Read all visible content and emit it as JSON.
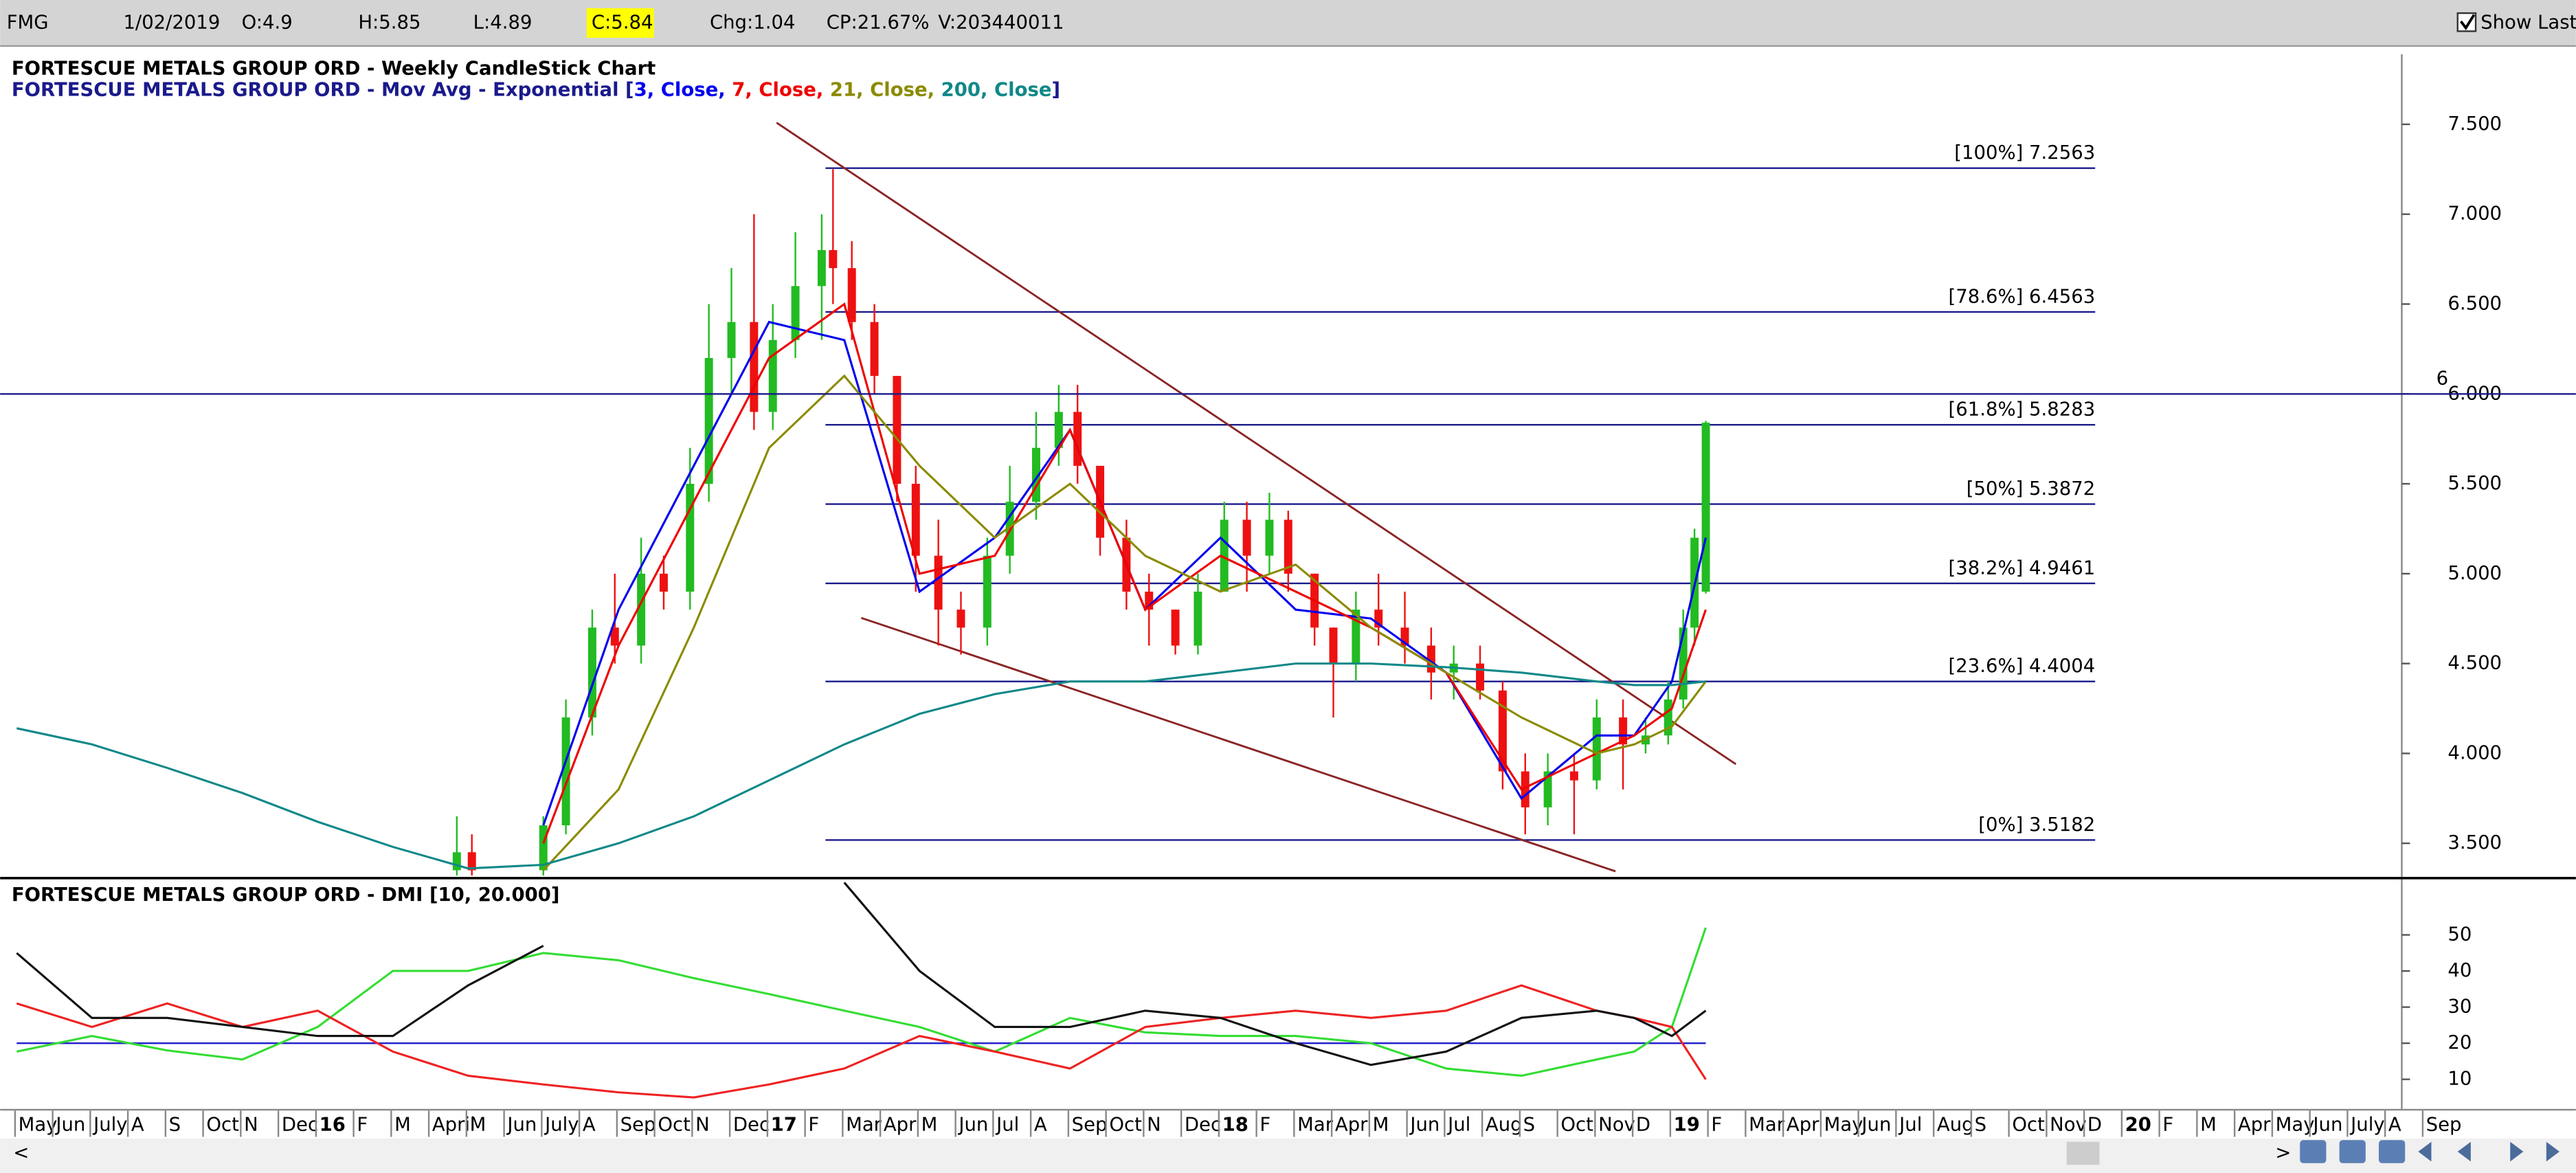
{
  "header": {
    "symbol": "FMG",
    "date": "1/02/2019",
    "open": "O:4.9",
    "high": "H:5.85",
    "low": "L:4.89",
    "close": "C:5.84",
    "change": "Chg:1.04",
    "change_pct": "CP:21.67%",
    "volume": "V:203440011",
    "show_last": "Show Last"
  },
  "time_axis": {
    "labels": [
      "May",
      "Jun",
      "July",
      "A",
      "S",
      "Oct",
      "N",
      "Dec",
      "16",
      "F",
      "M",
      "April",
      "M",
      "Jun",
      "July",
      "A",
      "Sep",
      "Oct",
      "N",
      "Dec",
      "17",
      "F",
      "Mar",
      "Apr",
      "M",
      "Jun",
      "Jul",
      "A",
      "Sep",
      "Oct",
      "N",
      "Dec",
      "18",
      "F",
      "Mar",
      "Apr",
      "M",
      "Jun",
      "Jul",
      "Aug",
      "S",
      "Oct",
      "Nov",
      "D",
      "19",
      "F",
      "Mar",
      "Apr",
      "May",
      "Jun",
      "Jul",
      "Aug",
      "S",
      "Oct",
      "Nov",
      "D",
      "20",
      "F",
      "M",
      "Apr",
      "May",
      "Jun",
      "July",
      "A",
      "Sep"
    ]
  },
  "chart_data": [
    {
      "type": "candlestick",
      "title": "FORTESCUE METALS GROUP ORD - Weekly CandleStick Chart",
      "legend_prefix": "FORTESCUE METALS GROUP ORD - Mov Avg - Exponential [",
      "legend_suffix": "]",
      "xlim": [
        -0.44,
        63.4
      ],
      "ylim": [
        3.32,
        7.89
      ],
      "yticks": [
        {
          "value": 3.5,
          "label": "3.500"
        },
        {
          "value": 4,
          "label": "4.000"
        },
        {
          "value": 4.5,
          "label": "4.500"
        },
        {
          "value": 5,
          "label": "5.000"
        },
        {
          "value": 5.5,
          "label": "5.500"
        },
        {
          "value": 6,
          "label": "6.000"
        },
        {
          "value": 6.5,
          "label": "6.500"
        },
        {
          "value": 7,
          "label": "7.000"
        },
        {
          "value": 7.5,
          "label": "7.500"
        }
      ],
      "up_color": "#22bb22",
      "down_color": "#ee1111",
      "candles": [
        {
          "x": 11.7,
          "open": 3.35,
          "high": 3.65,
          "low": 3.32,
          "close": 3.45
        },
        {
          "x": 12.1,
          "open": 3.45,
          "high": 3.55,
          "low": 3.32,
          "close": 3.35
        },
        {
          "x": 14.0,
          "open": 3.35,
          "high": 3.65,
          "low": 3.32,
          "close": 3.6
        },
        {
          "x": 14.6,
          "open": 3.6,
          "high": 4.3,
          "low": 3.55,
          "close": 4.2
        },
        {
          "x": 15.3,
          "open": 4.2,
          "high": 4.8,
          "low": 4.1,
          "close": 4.7
        },
        {
          "x": 15.9,
          "open": 4.7,
          "high": 5.0,
          "low": 4.5,
          "close": 4.6
        },
        {
          "x": 16.6,
          "open": 4.6,
          "high": 5.2,
          "low": 4.5,
          "close": 5.0
        },
        {
          "x": 17.2,
          "open": 5.0,
          "high": 5.1,
          "low": 4.8,
          "close": 4.9
        },
        {
          "x": 17.9,
          "open": 4.9,
          "high": 5.7,
          "low": 4.8,
          "close": 5.5
        },
        {
          "x": 18.4,
          "open": 5.5,
          "high": 6.5,
          "low": 5.4,
          "close": 6.2
        },
        {
          "x": 19.0,
          "open": 6.2,
          "high": 6.7,
          "low": 6.0,
          "close": 6.4
        },
        {
          "x": 19.6,
          "open": 6.4,
          "high": 7.0,
          "low": 5.8,
          "close": 5.9
        },
        {
          "x": 20.1,
          "open": 5.9,
          "high": 6.5,
          "low": 5.8,
          "close": 6.3
        },
        {
          "x": 20.7,
          "open": 6.3,
          "high": 6.9,
          "low": 6.2,
          "close": 6.6
        },
        {
          "x": 21.4,
          "open": 6.6,
          "high": 7.0,
          "low": 6.3,
          "close": 6.8
        },
        {
          "x": 21.7,
          "open": 6.8,
          "high": 7.25,
          "low": 6.5,
          "close": 6.7
        },
        {
          "x": 22.2,
          "open": 6.7,
          "high": 6.85,
          "low": 6.3,
          "close": 6.4
        },
        {
          "x": 22.8,
          "open": 6.4,
          "high": 6.5,
          "low": 6.0,
          "close": 6.1
        },
        {
          "x": 23.4,
          "open": 6.1,
          "high": 6.1,
          "low": 5.4,
          "close": 5.5
        },
        {
          "x": 23.9,
          "open": 5.5,
          "high": 5.6,
          "low": 4.9,
          "close": 5.1
        },
        {
          "x": 24.5,
          "open": 5.1,
          "high": 5.3,
          "low": 4.6,
          "close": 4.8
        },
        {
          "x": 25.1,
          "open": 4.8,
          "high": 4.9,
          "low": 4.55,
          "close": 4.7
        },
        {
          "x": 25.8,
          "open": 4.7,
          "high": 5.2,
          "low": 4.6,
          "close": 5.1
        },
        {
          "x": 26.4,
          "open": 5.1,
          "high": 5.6,
          "low": 5.0,
          "close": 5.4
        },
        {
          "x": 27.1,
          "open": 5.4,
          "high": 5.9,
          "low": 5.3,
          "close": 5.7
        },
        {
          "x": 27.7,
          "open": 5.7,
          "high": 6.05,
          "low": 5.6,
          "close": 5.9
        },
        {
          "x": 28.2,
          "open": 5.9,
          "high": 6.05,
          "low": 5.5,
          "close": 5.6
        },
        {
          "x": 28.8,
          "open": 5.6,
          "high": 5.6,
          "low": 5.1,
          "close": 5.2
        },
        {
          "x": 29.5,
          "open": 5.2,
          "high": 5.3,
          "low": 4.8,
          "close": 4.9
        },
        {
          "x": 30.1,
          "open": 4.9,
          "high": 5.0,
          "low": 4.6,
          "close": 4.8
        },
        {
          "x": 30.8,
          "open": 4.8,
          "high": 4.8,
          "low": 4.55,
          "close": 4.6
        },
        {
          "x": 31.4,
          "open": 4.6,
          "high": 5.0,
          "low": 4.55,
          "close": 4.9
        },
        {
          "x": 32.1,
          "open": 4.9,
          "high": 5.4,
          "low": 4.9,
          "close": 5.3
        },
        {
          "x": 32.7,
          "open": 5.3,
          "high": 5.4,
          "low": 4.9,
          "close": 5.1
        },
        {
          "x": 33.3,
          "open": 5.1,
          "high": 5.45,
          "low": 5.0,
          "close": 5.3
        },
        {
          "x": 33.8,
          "open": 5.3,
          "high": 5.35,
          "low": 4.9,
          "close": 5.0
        },
        {
          "x": 34.5,
          "open": 5.0,
          "high": 5.0,
          "low": 4.6,
          "close": 4.7
        },
        {
          "x": 35.0,
          "open": 4.7,
          "high": 4.7,
          "low": 4.2,
          "close": 4.5
        },
        {
          "x": 35.6,
          "open": 4.5,
          "high": 4.9,
          "low": 4.4,
          "close": 4.8
        },
        {
          "x": 36.2,
          "open": 4.8,
          "high": 5.0,
          "low": 4.6,
          "close": 4.7
        },
        {
          "x": 36.9,
          "open": 4.7,
          "high": 4.9,
          "low": 4.5,
          "close": 4.6
        },
        {
          "x": 37.6,
          "open": 4.6,
          "high": 4.7,
          "low": 4.3,
          "close": 4.45
        },
        {
          "x": 38.2,
          "open": 4.45,
          "high": 4.6,
          "low": 4.3,
          "close": 4.5
        },
        {
          "x": 38.9,
          "open": 4.5,
          "high": 4.6,
          "low": 4.3,
          "close": 4.35
        },
        {
          "x": 39.5,
          "open": 4.35,
          "high": 4.4,
          "low": 3.8,
          "close": 3.9
        },
        {
          "x": 40.1,
          "open": 3.9,
          "high": 4.0,
          "low": 3.55,
          "close": 3.7
        },
        {
          "x": 40.7,
          "open": 3.7,
          "high": 4.0,
          "low": 3.6,
          "close": 3.9
        },
        {
          "x": 41.4,
          "open": 3.9,
          "high": 4.0,
          "low": 3.55,
          "close": 3.85
        },
        {
          "x": 42.0,
          "open": 3.85,
          "high": 4.3,
          "low": 3.8,
          "close": 4.2
        },
        {
          "x": 42.7,
          "open": 4.2,
          "high": 4.3,
          "low": 3.8,
          "close": 4.05
        },
        {
          "x": 43.3,
          "open": 4.05,
          "high": 4.2,
          "low": 4.0,
          "close": 4.1
        },
        {
          "x": 43.9,
          "open": 4.1,
          "high": 4.4,
          "low": 4.05,
          "close": 4.3
        },
        {
          "x": 44.3,
          "open": 4.3,
          "high": 4.8,
          "low": 4.25,
          "close": 4.7
        },
        {
          "x": 44.6,
          "open": 4.7,
          "high": 5.25,
          "low": 4.6,
          "close": 5.2
        },
        {
          "x": 44.9,
          "open": 4.9,
          "high": 5.85,
          "low": 4.89,
          "close": 5.84
        }
      ],
      "x": [
        0,
        2,
        4,
        6,
        8,
        10,
        12,
        14,
        16,
        18,
        20,
        22,
        24,
        26,
        28,
        30,
        32,
        34,
        36,
        38,
        40,
        42,
        43,
        44,
        44.9
      ],
      "series": [
        {
          "name": "3, Close,",
          "color": "#0000ee",
          "values": [
            null,
            null,
            null,
            null,
            null,
            null,
            null,
            3.6,
            4.8,
            5.6,
            6.4,
            6.3,
            4.9,
            5.2,
            5.8,
            4.8,
            5.2,
            4.8,
            4.75,
            4.45,
            3.75,
            4.1,
            4.1,
            4.4,
            5.2
          ]
        },
        {
          "name": "7, Close,",
          "color": "#ee0000",
          "values": [
            null,
            null,
            null,
            null,
            null,
            null,
            null,
            3.5,
            4.6,
            5.4,
            6.2,
            6.5,
            5.0,
            5.1,
            5.8,
            4.8,
            5.1,
            4.9,
            4.7,
            4.45,
            3.8,
            4.0,
            4.1,
            4.25,
            4.8
          ]
        },
        {
          "name": "21, Close,",
          "color": "#8b8b00",
          "values": [
            null,
            null,
            null,
            null,
            null,
            null,
            null,
            3.35,
            3.8,
            4.7,
            5.7,
            6.1,
            5.6,
            5.2,
            5.5,
            5.1,
            4.9,
            5.05,
            4.7,
            4.45,
            4.2,
            4.0,
            4.05,
            4.15,
            4.4
          ]
        },
        {
          "name": "200, Close",
          "color": "#118888",
          "values": [
            4.14,
            4.05,
            3.92,
            3.78,
            3.62,
            3.48,
            3.36,
            3.38,
            3.5,
            3.65,
            3.85,
            4.05,
            4.22,
            4.33,
            4.4,
            4.4,
            4.45,
            4.5,
            4.5,
            4.48,
            4.45,
            4.4,
            4.38,
            4.38,
            4.4
          ]
        }
      ],
      "fib_color": "#1a1a8c",
      "fib_x": [
        21.5,
        55.25
      ],
      "fib_levels": [
        {
          "label": "[100%] 7.2563",
          "value": 7.2563
        },
        {
          "label": "[78.6%] 6.4563",
          "value": 6.4563
        },
        {
          "label": "[61.8%] 5.8283",
          "value": 5.8283
        },
        {
          "label": "[50%] 5.3872",
          "value": 5.3872
        },
        {
          "label": "[38.2%] 4.9461",
          "value": 4.9461
        },
        {
          "label": "[23.6%] 4.4004",
          "value": 4.4004
        },
        {
          "label": "[0%] 3.5182",
          "value": 3.5182
        }
      ],
      "hline": 6,
      "trendlines": [
        {
          "x": [
            20.2,
            45.7
          ],
          "y": [
            7.509,
            3.94
          ],
          "color": "#8b2525"
        },
        {
          "x": [
            22.45,
            42.5
          ],
          "y": [
            4.754,
            3.344
          ],
          "color": "#8b2525"
        }
      ]
    },
    {
      "type": "line",
      "title": "FORTESCUE METALS GROUP ORD - DMI [10, 20.000]",
      "xlim": [
        -0.44,
        63.4
      ],
      "ylim": [
        1.8,
        65.5
      ],
      "yticks": [
        10,
        20,
        30,
        40,
        50
      ],
      "hline": 20,
      "hline_color": "#2222cc",
      "x": [
        0,
        2,
        4,
        6,
        8,
        10,
        12,
        14,
        16,
        18,
        20,
        22,
        24,
        26,
        28,
        30,
        32,
        34,
        36,
        38,
        40,
        42,
        43,
        44,
        44.9
      ],
      "series": [
        {
          "color": "#33dd33",
          "values": [
            17.7,
            22,
            18,
            15.5,
            24.5,
            40,
            40,
            45,
            43,
            38,
            33.6,
            29,
            24.5,
            17.7,
            27,
            23,
            22,
            22,
            20,
            13,
            11,
            15.5,
            17.7,
            24.5,
            52
          ]
        },
        {
          "color": "#ee2222",
          "values": [
            31,
            24.5,
            31,
            24.5,
            29,
            17.7,
            11,
            8.6,
            6.4,
            5,
            8.6,
            13,
            22,
            17.7,
            13,
            24.5,
            27,
            29,
            27,
            29,
            36,
            29,
            27,
            24.5,
            10
          ]
        },
        {
          "color": "#111111",
          "values": [
            45,
            27,
            27,
            24.5,
            22,
            22,
            36,
            47,
            null,
            null,
            null,
            64.5,
            40,
            24.5,
            24.5,
            29,
            27,
            20,
            14,
            17.7,
            27,
            29,
            27,
            22,
            29
          ]
        }
      ]
    }
  ]
}
